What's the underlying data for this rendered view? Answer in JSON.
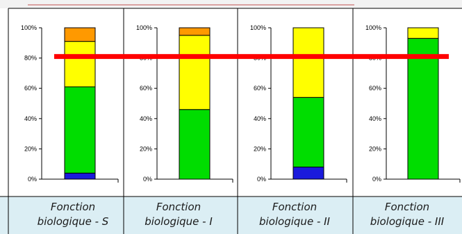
{
  "chart_data": [
    {
      "type": "bar",
      "stacked": true,
      "category_label": [
        "Fonction",
        "biologique - S"
      ],
      "ylim": [
        0,
        100
      ],
      "yticks": [
        "0%",
        "20%",
        "40%",
        "60%",
        "80%",
        "100%"
      ],
      "segments": [
        {
          "color": "#1a1adc",
          "value": 4
        },
        {
          "color": "#00dd00",
          "value": 57
        },
        {
          "color": "#ffff00",
          "value": 30
        },
        {
          "color": "#ff9900",
          "value": 9
        }
      ]
    },
    {
      "type": "bar",
      "stacked": true,
      "category_label": [
        "Fonction",
        "biologique - I"
      ],
      "ylim": [
        0,
        100
      ],
      "yticks": [
        "0%",
        "20%",
        "40%",
        "60%",
        "80%",
        "100%"
      ],
      "segments": [
        {
          "color": "#00dd00",
          "value": 46
        },
        {
          "color": "#ffff00",
          "value": 49
        },
        {
          "color": "#ff9900",
          "value": 5
        }
      ]
    },
    {
      "type": "bar",
      "stacked": true,
      "category_label": [
        "Fonction",
        "biologique - II"
      ],
      "ylim": [
        0,
        100
      ],
      "yticks": [
        "0%",
        "20%",
        "40%",
        "60%",
        "80%",
        "100%"
      ],
      "segments": [
        {
          "color": "#1a1adc",
          "value": 8
        },
        {
          "color": "#00dd00",
          "value": 46
        },
        {
          "color": "#ffff00",
          "value": 46
        }
      ]
    },
    {
      "type": "bar",
      "stacked": true,
      "category_label": [
        "Fonction",
        "biologique - III"
      ],
      "ylim": [
        0,
        100
      ],
      "yticks": [
        "0%",
        "20%",
        "40%",
        "60%",
        "80%",
        "100%"
      ],
      "segments": [
        {
          "color": "#00dd00",
          "value": 93
        },
        {
          "color": "#ffff00",
          "value": 7
        }
      ]
    }
  ],
  "threshold_line": {
    "value": 81,
    "color": "#ff0000"
  },
  "colors": {
    "caption_background": "#dbeef4",
    "header_background": "#f2f2f2",
    "header_accent": "#c0504d"
  }
}
